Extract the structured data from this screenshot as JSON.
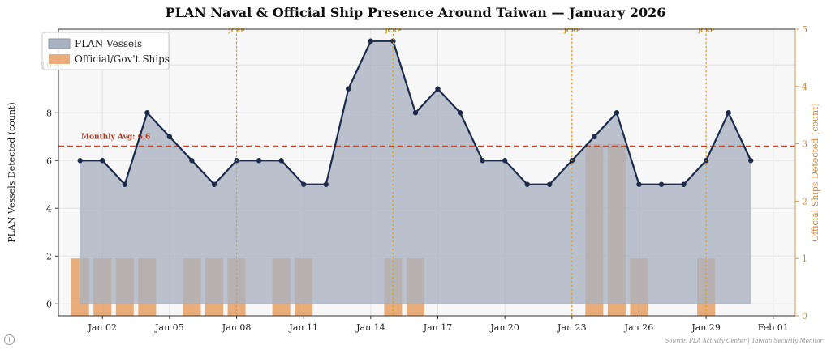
{
  "chart_data": {
    "type": "line",
    "title": "PLAN Naval & Official Ship Presence Around Taiwan — January 2026",
    "ylabel": "PLAN Vessels Detected (count)",
    "y2label": "Official Ships Detected (count)",
    "ylim": [
      -0.5,
      11.5
    ],
    "y2lim": [
      0,
      5
    ],
    "yticks": [
      "0",
      "2",
      "4",
      "6",
      "8",
      "10"
    ],
    "y2ticks": [
      "0",
      "1",
      "2",
      "3",
      "4",
      "5"
    ],
    "xticks": [
      "Jan 02",
      "Jan 05",
      "Jan 08",
      "Jan 11",
      "Jan 14",
      "Jan 17",
      "Jan 20",
      "Jan 23",
      "Jan 26",
      "Jan 29",
      "Feb 01"
    ],
    "x": [
      "Jan 01",
      "Jan 02",
      "Jan 03",
      "Jan 04",
      "Jan 05",
      "Jan 06",
      "Jan 07",
      "Jan 08",
      "Jan 09",
      "Jan 10",
      "Jan 11",
      "Jan 12",
      "Jan 13",
      "Jan 14",
      "Jan 15",
      "Jan 16",
      "Jan 17",
      "Jan 18",
      "Jan 19",
      "Jan 20",
      "Jan 21",
      "Jan 22",
      "Jan 23",
      "Jan 24",
      "Jan 25",
      "Jan 26",
      "Jan 27",
      "Jan 28",
      "Jan 29",
      "Jan 30",
      "Jan 31"
    ],
    "series": [
      {
        "name": "PLAN Vessels",
        "axis": "left",
        "kind": "area-line",
        "color": "#1c2b4a",
        "fill": "#a9b2c1",
        "values": [
          6,
          6,
          5,
          8,
          7,
          6,
          5,
          6,
          6,
          6,
          5,
          5,
          9,
          11,
          11,
          8,
          9,
          8,
          6,
          6,
          5,
          5,
          6,
          7,
          8,
          5,
          5,
          5,
          6,
          8,
          6
        ]
      },
      {
        "name": "Official/Gov't Ships",
        "axis": "right",
        "kind": "bar",
        "color": "#e6a065",
        "values": [
          1,
          1,
          1,
          1,
          0,
          1,
          1,
          1,
          0,
          1,
          1,
          0,
          0,
          0,
          1,
          1,
          0,
          0,
          0,
          0,
          0,
          0,
          0,
          3,
          3,
          1,
          0,
          0,
          1,
          0,
          0
        ]
      }
    ],
    "reference_line": {
      "label": "Monthly Avg: 6.6",
      "value": 6.6,
      "color": "#c8442c"
    },
    "annotations": [
      {
        "text": "JCRP",
        "x": "Jan 08"
      },
      {
        "text": "JCRP",
        "x": "Jan 15"
      },
      {
        "text": "JCRP",
        "x": "Jan 23"
      },
      {
        "text": "JCRP",
        "x": "Jan 29"
      }
    ],
    "legend": "top-left",
    "grid": true
  },
  "footer": {
    "source": "Source: PLA Activity Center | Taiwan Security Monitor",
    "icon": "info-icon"
  }
}
